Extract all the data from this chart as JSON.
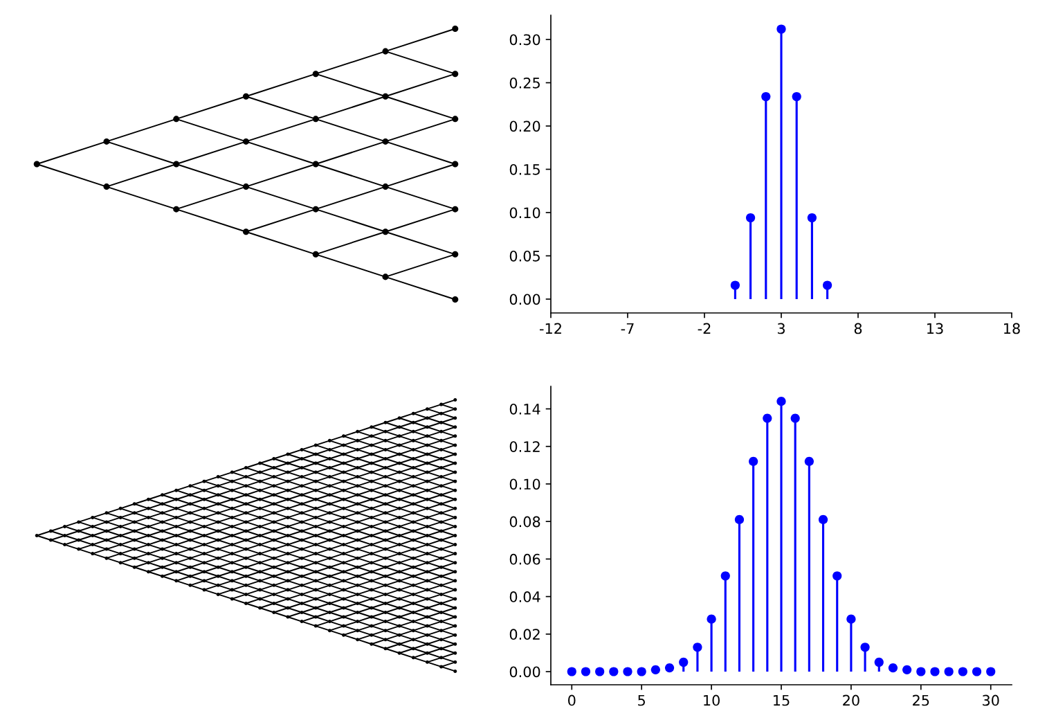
{
  "chart_data": [
    {
      "type": "lollipop",
      "x": [
        0,
        1,
        2,
        3,
        4,
        5,
        6
      ],
      "values": [
        0.016,
        0.094,
        0.234,
        0.312,
        0.234,
        0.094,
        0.016
      ],
      "color": "#0000ff",
      "marker": "circle",
      "xlim": [
        -12,
        18
      ],
      "xticks": [
        -12,
        -7,
        -2,
        3,
        8,
        13,
        18
      ],
      "ylim": [
        -0.016,
        0.328
      ],
      "yticks": [
        {
          "value": 0,
          "label": "0.00"
        },
        {
          "value": 0.05,
          "label": "0.05"
        },
        {
          "value": 0.1,
          "label": "0.10"
        },
        {
          "value": 0.15,
          "label": "0.15"
        },
        {
          "value": 0.2,
          "label": "0.20"
        },
        {
          "value": 0.25,
          "label": "0.25"
        },
        {
          "value": 0.3,
          "label": "0.30"
        }
      ]
    },
    {
      "type": "lollipop",
      "x": [
        0,
        1,
        2,
        3,
        4,
        5,
        6,
        7,
        8,
        9,
        10,
        11,
        12,
        13,
        14,
        15,
        16,
        17,
        18,
        19,
        20,
        21,
        22,
        23,
        24,
        25,
        26,
        27,
        28,
        29,
        30
      ],
      "values": [
        0,
        0,
        0,
        0,
        0,
        0,
        0.001,
        0.002,
        0.005,
        0.013,
        0.028,
        0.051,
        0.081,
        0.112,
        0.135,
        0.144,
        0.135,
        0.112,
        0.081,
        0.051,
        0.028,
        0.013,
        0.005,
        0.002,
        0.001,
        0,
        0,
        0,
        0,
        0,
        0
      ],
      "color": "#0000ff",
      "marker": "circle",
      "xlim": [
        -1.5,
        31.5
      ],
      "xticks": [
        0,
        5,
        10,
        15,
        20,
        25,
        30
      ],
      "ylim": [
        -0.007,
        0.152
      ],
      "yticks": [
        {
          "value": 0,
          "label": "0.00"
        },
        {
          "value": 0.02,
          "label": "0.02"
        },
        {
          "value": 0.04,
          "label": "0.04"
        },
        {
          "value": 0.06,
          "label": "0.06"
        },
        {
          "value": 0.08,
          "label": "0.08"
        },
        {
          "value": 0.1,
          "label": "0.10"
        },
        {
          "value": 0.12,
          "label": "0.12"
        },
        {
          "value": 0.14,
          "label": "0.14"
        }
      ]
    }
  ]
}
